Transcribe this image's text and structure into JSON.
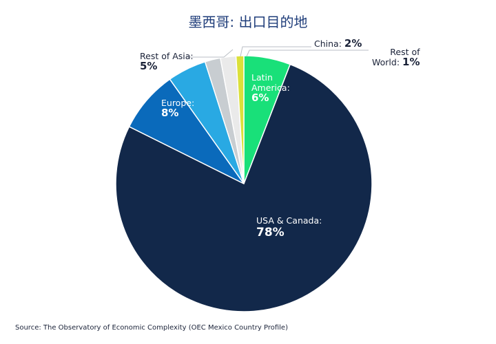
{
  "chart_data": {
    "type": "pie",
    "title": "墨西哥: 出口目的地",
    "slices": [
      {
        "name": "Latin America:",
        "value": 6,
        "label": "6%",
        "color": "#19e079"
      },
      {
        "name": "USA & Canada:",
        "value": 78,
        "label": "78%",
        "color": "#12284a"
      },
      {
        "name": "Europe:",
        "value": 8,
        "label": "8%",
        "color": "#0a6abb"
      },
      {
        "name": "Rest of Asia:",
        "value": 5,
        "label": "5%",
        "color": "#29a9e3"
      },
      {
        "name": "",
        "value": 2,
        "label": "",
        "color": "#c8cdd1"
      },
      {
        "name": "China:",
        "value": 2,
        "label": "2%",
        "color": "#eaeaea"
      },
      {
        "name": "Rest of World:",
        "value": 1,
        "label": "1%",
        "color": "#dbe03a"
      }
    ]
  },
  "labels": {
    "latin_name_1": "Latin",
    "latin_name_2": "America:",
    "latin_pct": "6%",
    "usa_name": "USA & Canada:",
    "usa_pct": "78%",
    "europe_name": "Europe:",
    "europe_pct": "8%",
    "asia_name": "Rest of Asia:",
    "asia_pct": "5%",
    "china_name": "China:",
    "china_pct": "2%",
    "row_name_1": "Rest of",
    "row_name_2": "World:",
    "row_pct": "1%"
  },
  "source": "Source: The Observatory of Economic Complexity (OEC Mexico Country Profile)"
}
